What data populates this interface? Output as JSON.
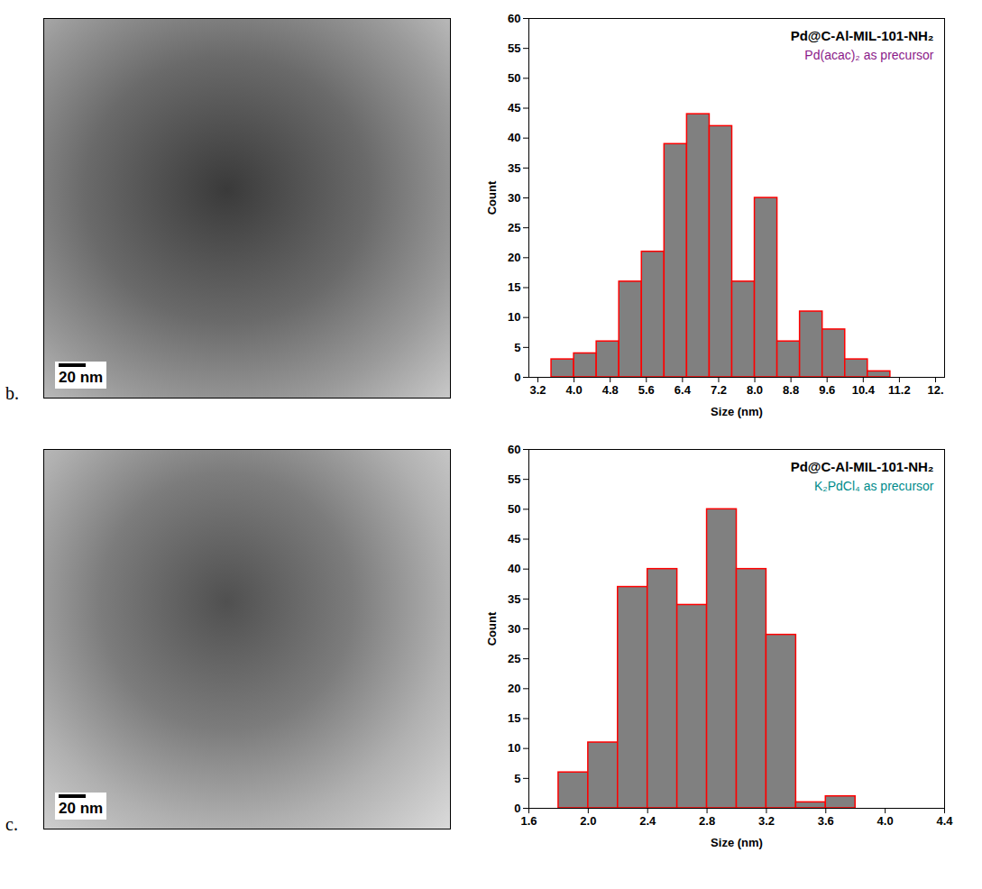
{
  "chart_data": [
    {
      "type": "histogram",
      "panel": "b.",
      "image_scale_bar": "20 nm",
      "title": "Pd@C-Al-MIL-101-NH₂",
      "subtitle": "Pd(acac)₂ as precursor",
      "x_label": "Size (nm)",
      "y_label": "Count",
      "color": "#808080",
      "bins": [
        3.5,
        4.0,
        4.5,
        5.0,
        5.5,
        6.0,
        6.5,
        7.0,
        7.5,
        8.0,
        8.5,
        9.0,
        9.5,
        10.0,
        10.5,
        11.0
      ],
      "values": [
        3,
        4,
        6,
        16,
        21,
        39,
        44,
        42,
        16,
        30,
        6,
        11,
        8,
        3,
        1
      ],
      "xlim": [
        3.0,
        12.2
      ],
      "xticks": [
        3.2,
        {
          "value": 4,
          "label": "4.0"
        },
        4.8,
        5.6,
        6.4,
        7.2,
        {
          "value": 8,
          "label": "8.0"
        },
        8.8,
        9.6,
        10.4,
        11.2,
        {
          "value": 12,
          "label": "12."
        }
      ],
      "ylim": [
        0,
        60
      ],
      "yticks": [
        0,
        5,
        10,
        15,
        20,
        25,
        30,
        35,
        40,
        45,
        50,
        55,
        60
      ]
    },
    {
      "type": "histogram",
      "panel": "c.",
      "image_scale_bar": "20 nm",
      "title": "Pd@C-Al-MIL-101-NH₂",
      "subtitle": "K₂PdCl₄ as precursor",
      "x_label": "Size (nm)",
      "y_label": "Count",
      "color": "#808080",
      "bins": [
        1.8,
        2.0,
        2.2,
        2.4,
        2.6,
        2.8,
        3.0,
        3.2,
        3.4,
        3.6,
        3.8
      ],
      "values": [
        6,
        11,
        37,
        40,
        34,
        50,
        40,
        29,
        1,
        2
      ],
      "xlim": [
        1.6,
        4.4
      ],
      "xticks": [
        1.6,
        {
          "value": 2,
          "label": "2.0"
        },
        2.4,
        2.8,
        3.2,
        3.6,
        {
          "value": 4,
          "label": "4.0"
        },
        4.4
      ],
      "ylim": [
        0,
        60
      ],
      "yticks": [
        0,
        5,
        10,
        15,
        20,
        25,
        30,
        35,
        40,
        45,
        50,
        55,
        60
      ]
    }
  ]
}
